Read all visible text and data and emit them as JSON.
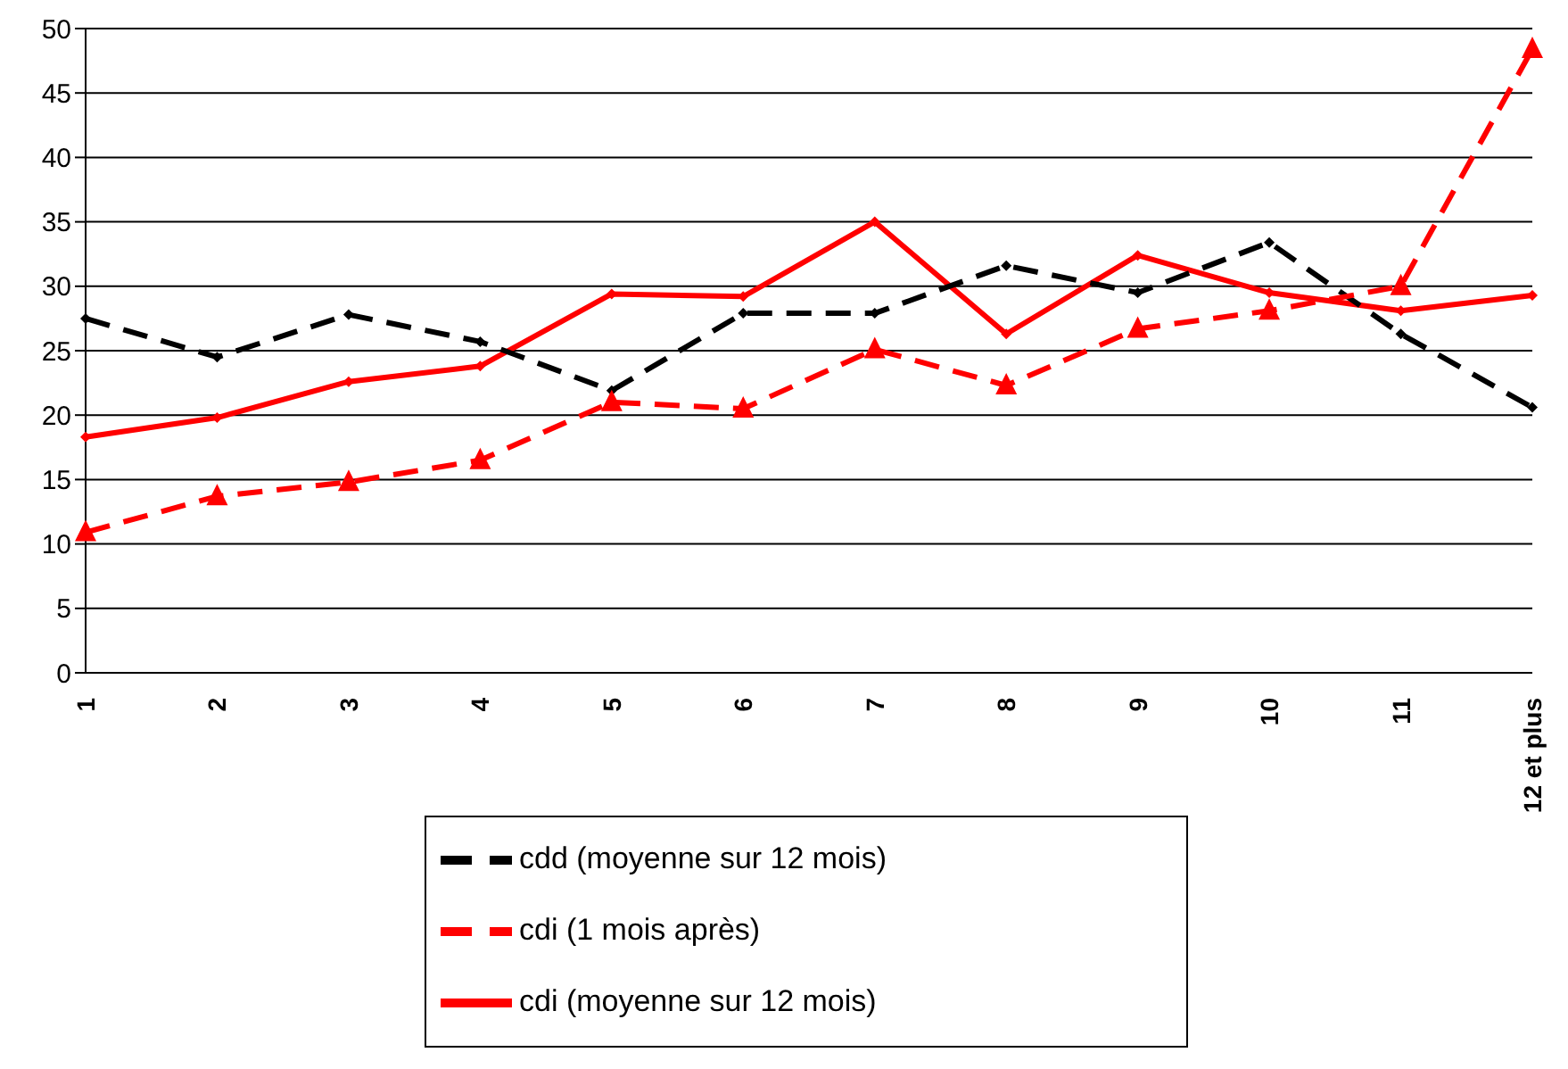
{
  "chart_data": {
    "type": "line",
    "categories": [
      "1",
      "2",
      "3",
      "4",
      "5",
      "6",
      "7",
      "8",
      "9",
      "10",
      "11",
      "12 et plus"
    ],
    "series": [
      {
        "name": "cdi (moyenne sur 12 mois)",
        "color": "#ff0000",
        "marker": "diamond",
        "line_style": "solid",
        "values": [
          18.3,
          19.8,
          22.6,
          23.8,
          29.4,
          29.2,
          35.0,
          26.3,
          32.4,
          29.5,
          28.1,
          29.3
        ]
      },
      {
        "name": "cdd (moyenne sur 12 mois)",
        "color": "#000000",
        "marker": "diamond",
        "line_style": "dashed",
        "values": [
          27.5,
          24.5,
          27.8,
          25.7,
          21.9,
          27.9,
          27.9,
          31.6,
          29.5,
          33.4,
          26.3,
          20.6
        ]
      },
      {
        "name": "cdi (1 mois après)",
        "color": "#ff0000",
        "marker": "triangle",
        "line_style": "dashed",
        "values": [
          10.9,
          13.7,
          14.8,
          16.5,
          21.0,
          20.5,
          25.1,
          22.3,
          26.7,
          28.1,
          30.0,
          48.4
        ]
      }
    ],
    "ylim": [
      0,
      50
    ],
    "yticks": [
      0,
      5,
      10,
      15,
      20,
      25,
      30,
      35,
      40,
      45,
      50
    ],
    "grid": "y",
    "legend": "bottom"
  }
}
